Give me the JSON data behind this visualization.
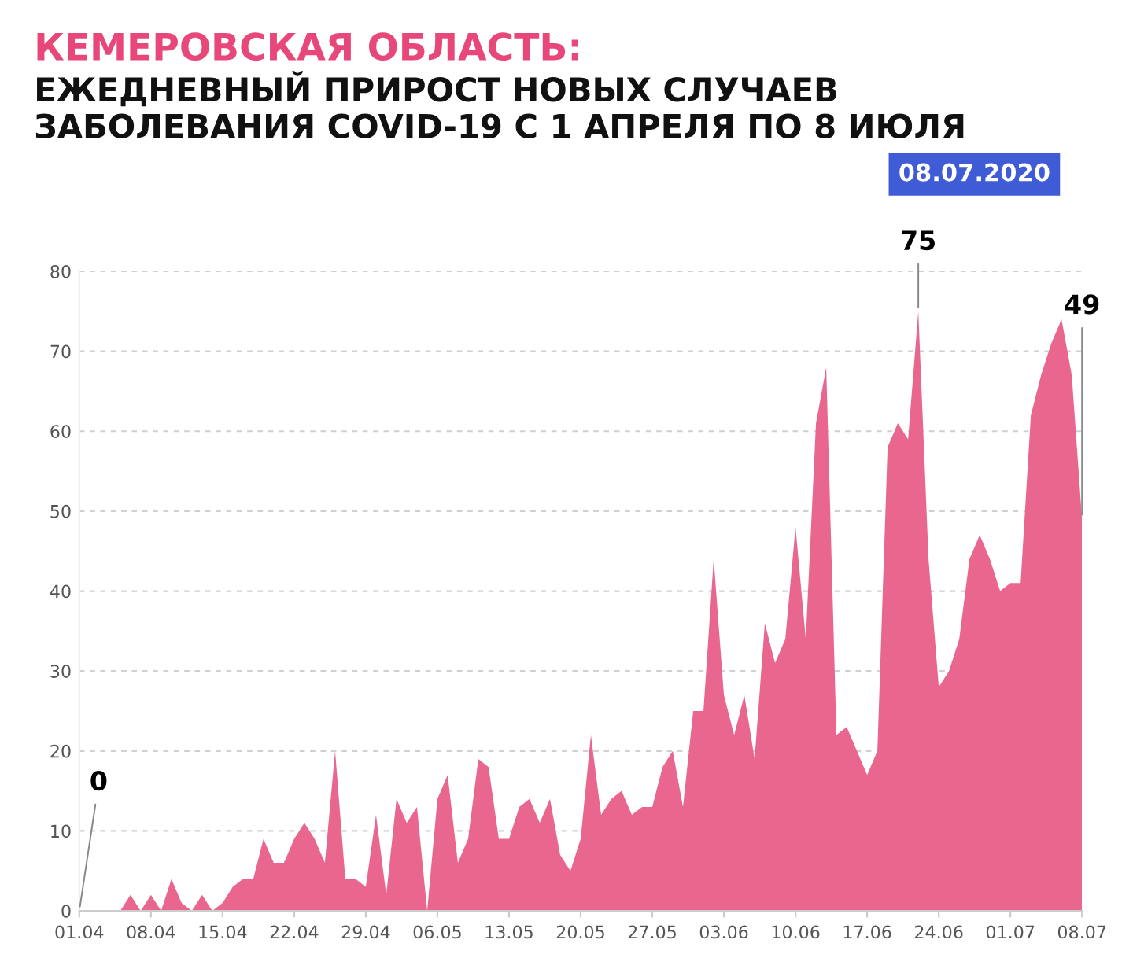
{
  "chart_data": {
    "type": "area",
    "title": "КЕМЕРОВСКАЯ ОБЛАСТЬ:",
    "subtitle": "ЕЖЕДНЕВНЫЙ ПРИРОСТ НОВЫХ СЛУЧАЕВ ЗАБОЛЕВАНИЯ COVID-19 С 1 АПРЕЛЯ ПО 8 ИЮЛЯ",
    "annotations": [
      "08.07.2020"
    ],
    "x": [
      "2020-04-01",
      "2020-04-02",
      "2020-04-03",
      "2020-04-04",
      "2020-04-05",
      "2020-04-06",
      "2020-04-07",
      "2020-04-08",
      "2020-04-09",
      "2020-04-10",
      "2020-04-11",
      "2020-04-12",
      "2020-04-13",
      "2020-04-14",
      "2020-04-15",
      "2020-04-16",
      "2020-04-17",
      "2020-04-18",
      "2020-04-19",
      "2020-04-20",
      "2020-04-21",
      "2020-04-22",
      "2020-04-23",
      "2020-04-24",
      "2020-04-25",
      "2020-04-26",
      "2020-04-27",
      "2020-04-28",
      "2020-04-29",
      "2020-04-30",
      "2020-05-01",
      "2020-05-02",
      "2020-05-03",
      "2020-05-04",
      "2020-05-05",
      "2020-05-06",
      "2020-05-07",
      "2020-05-08",
      "2020-05-09",
      "2020-05-10",
      "2020-05-11",
      "2020-05-12",
      "2020-05-13",
      "2020-05-14",
      "2020-05-15",
      "2020-05-16",
      "2020-05-17",
      "2020-05-18",
      "2020-05-19",
      "2020-05-20",
      "2020-05-21",
      "2020-05-22",
      "2020-05-23",
      "2020-05-24",
      "2020-05-25",
      "2020-05-26",
      "2020-05-27",
      "2020-05-28",
      "2020-05-29",
      "2020-05-30",
      "2020-05-31",
      "2020-06-01",
      "2020-06-02",
      "2020-06-03",
      "2020-06-04",
      "2020-06-05",
      "2020-06-06",
      "2020-06-07",
      "2020-06-08",
      "2020-06-09",
      "2020-06-10",
      "2020-06-11",
      "2020-06-12",
      "2020-06-13",
      "2020-06-14",
      "2020-06-15",
      "2020-06-16",
      "2020-06-17",
      "2020-06-18",
      "2020-06-19",
      "2020-06-20",
      "2020-06-21",
      "2020-06-22",
      "2020-06-23",
      "2020-06-24",
      "2020-06-25",
      "2020-06-26",
      "2020-06-27",
      "2020-06-28",
      "2020-06-29",
      "2020-06-30",
      "2020-07-01",
      "2020-07-02",
      "2020-07-03",
      "2020-07-04",
      "2020-07-05",
      "2020-07-06",
      "2020-07-07",
      "2020-07-08"
    ],
    "values": [
      0,
      0,
      0,
      0,
      0,
      2,
      0,
      2,
      0,
      4,
      1,
      0,
      2,
      0,
      1,
      3,
      4,
      4,
      9,
      6,
      6,
      9,
      11,
      9,
      6,
      20,
      4,
      4,
      3,
      12,
      2,
      14,
      11,
      13,
      0,
      14,
      17,
      6,
      9,
      19,
      18,
      9,
      9,
      13,
      14,
      11,
      14,
      7,
      5,
      9,
      22,
      12,
      14,
      15,
      12,
      13,
      13,
      18,
      20,
      13,
      25,
      25,
      44,
      27,
      22,
      27,
      19,
      36,
      31,
      34,
      48,
      34,
      61,
      68,
      22,
      23,
      20,
      17,
      20,
      58,
      61,
      59,
      75,
      44,
      28,
      30,
      34,
      44,
      47,
      44,
      40,
      41,
      41,
      62,
      67,
      71,
      74,
      67,
      49
    ],
    "value_labels": [
      "0",
      null,
      null,
      null,
      null,
      null,
      null,
      null,
      null,
      null,
      null,
      null,
      null,
      null,
      null,
      null,
      null,
      null,
      null,
      null,
      null,
      null,
      null,
      null,
      null,
      null,
      null,
      null,
      null,
      null,
      null,
      null,
      null,
      null,
      null,
      null,
      null,
      null,
      null,
      null,
      null,
      null,
      null,
      null,
      null,
      null,
      null,
      null,
      null,
      null,
      null,
      null,
      null,
      null,
      null,
      null,
      null,
      null,
      null,
      null,
      null,
      null,
      null,
      null,
      null,
      null,
      null,
      null,
      null,
      null,
      null,
      null,
      null,
      null,
      null,
      null,
      null,
      null,
      null,
      null,
      null,
      null,
      "75",
      null,
      null,
      null,
      null,
      null,
      null,
      null,
      null,
      null,
      null,
      null,
      null,
      null,
      null,
      null,
      "49"
    ],
    "color": "#e9678f",
    "xlim": [
      "2020-04-01",
      "2020-07-08"
    ],
    "xticks": [
      {
        "value": "2020-04-01",
        "label": "01.04"
      },
      {
        "value": "2020-04-08",
        "label": "08.04"
      },
      {
        "value": "2020-04-15",
        "label": "15.04"
      },
      {
        "value": "2020-04-22",
        "label": "22.04"
      },
      {
        "value": "2020-04-29",
        "label": "29.04"
      },
      {
        "value": "2020-05-06",
        "label": "06.05"
      },
      {
        "value": "2020-05-13",
        "label": "13.05"
      },
      {
        "value": "2020-05-20",
        "label": "20.05"
      },
      {
        "value": "2020-05-27",
        "label": "27.05"
      },
      {
        "value": "2020-06-03",
        "label": "03.06"
      },
      {
        "value": "2020-06-10",
        "label": "10.06"
      },
      {
        "value": "2020-06-17",
        "label": "17.06"
      },
      {
        "value": "2020-06-24",
        "label": "24.06"
      },
      {
        "value": "2020-07-01",
        "label": "01.07"
      },
      {
        "value": "2020-07-08",
        "label": "08.07"
      }
    ],
    "ylim": [
      0,
      80
    ],
    "yticks": [
      0,
      10,
      20,
      30,
      40,
      50,
      60,
      70,
      80
    ],
    "grid": "y"
  }
}
